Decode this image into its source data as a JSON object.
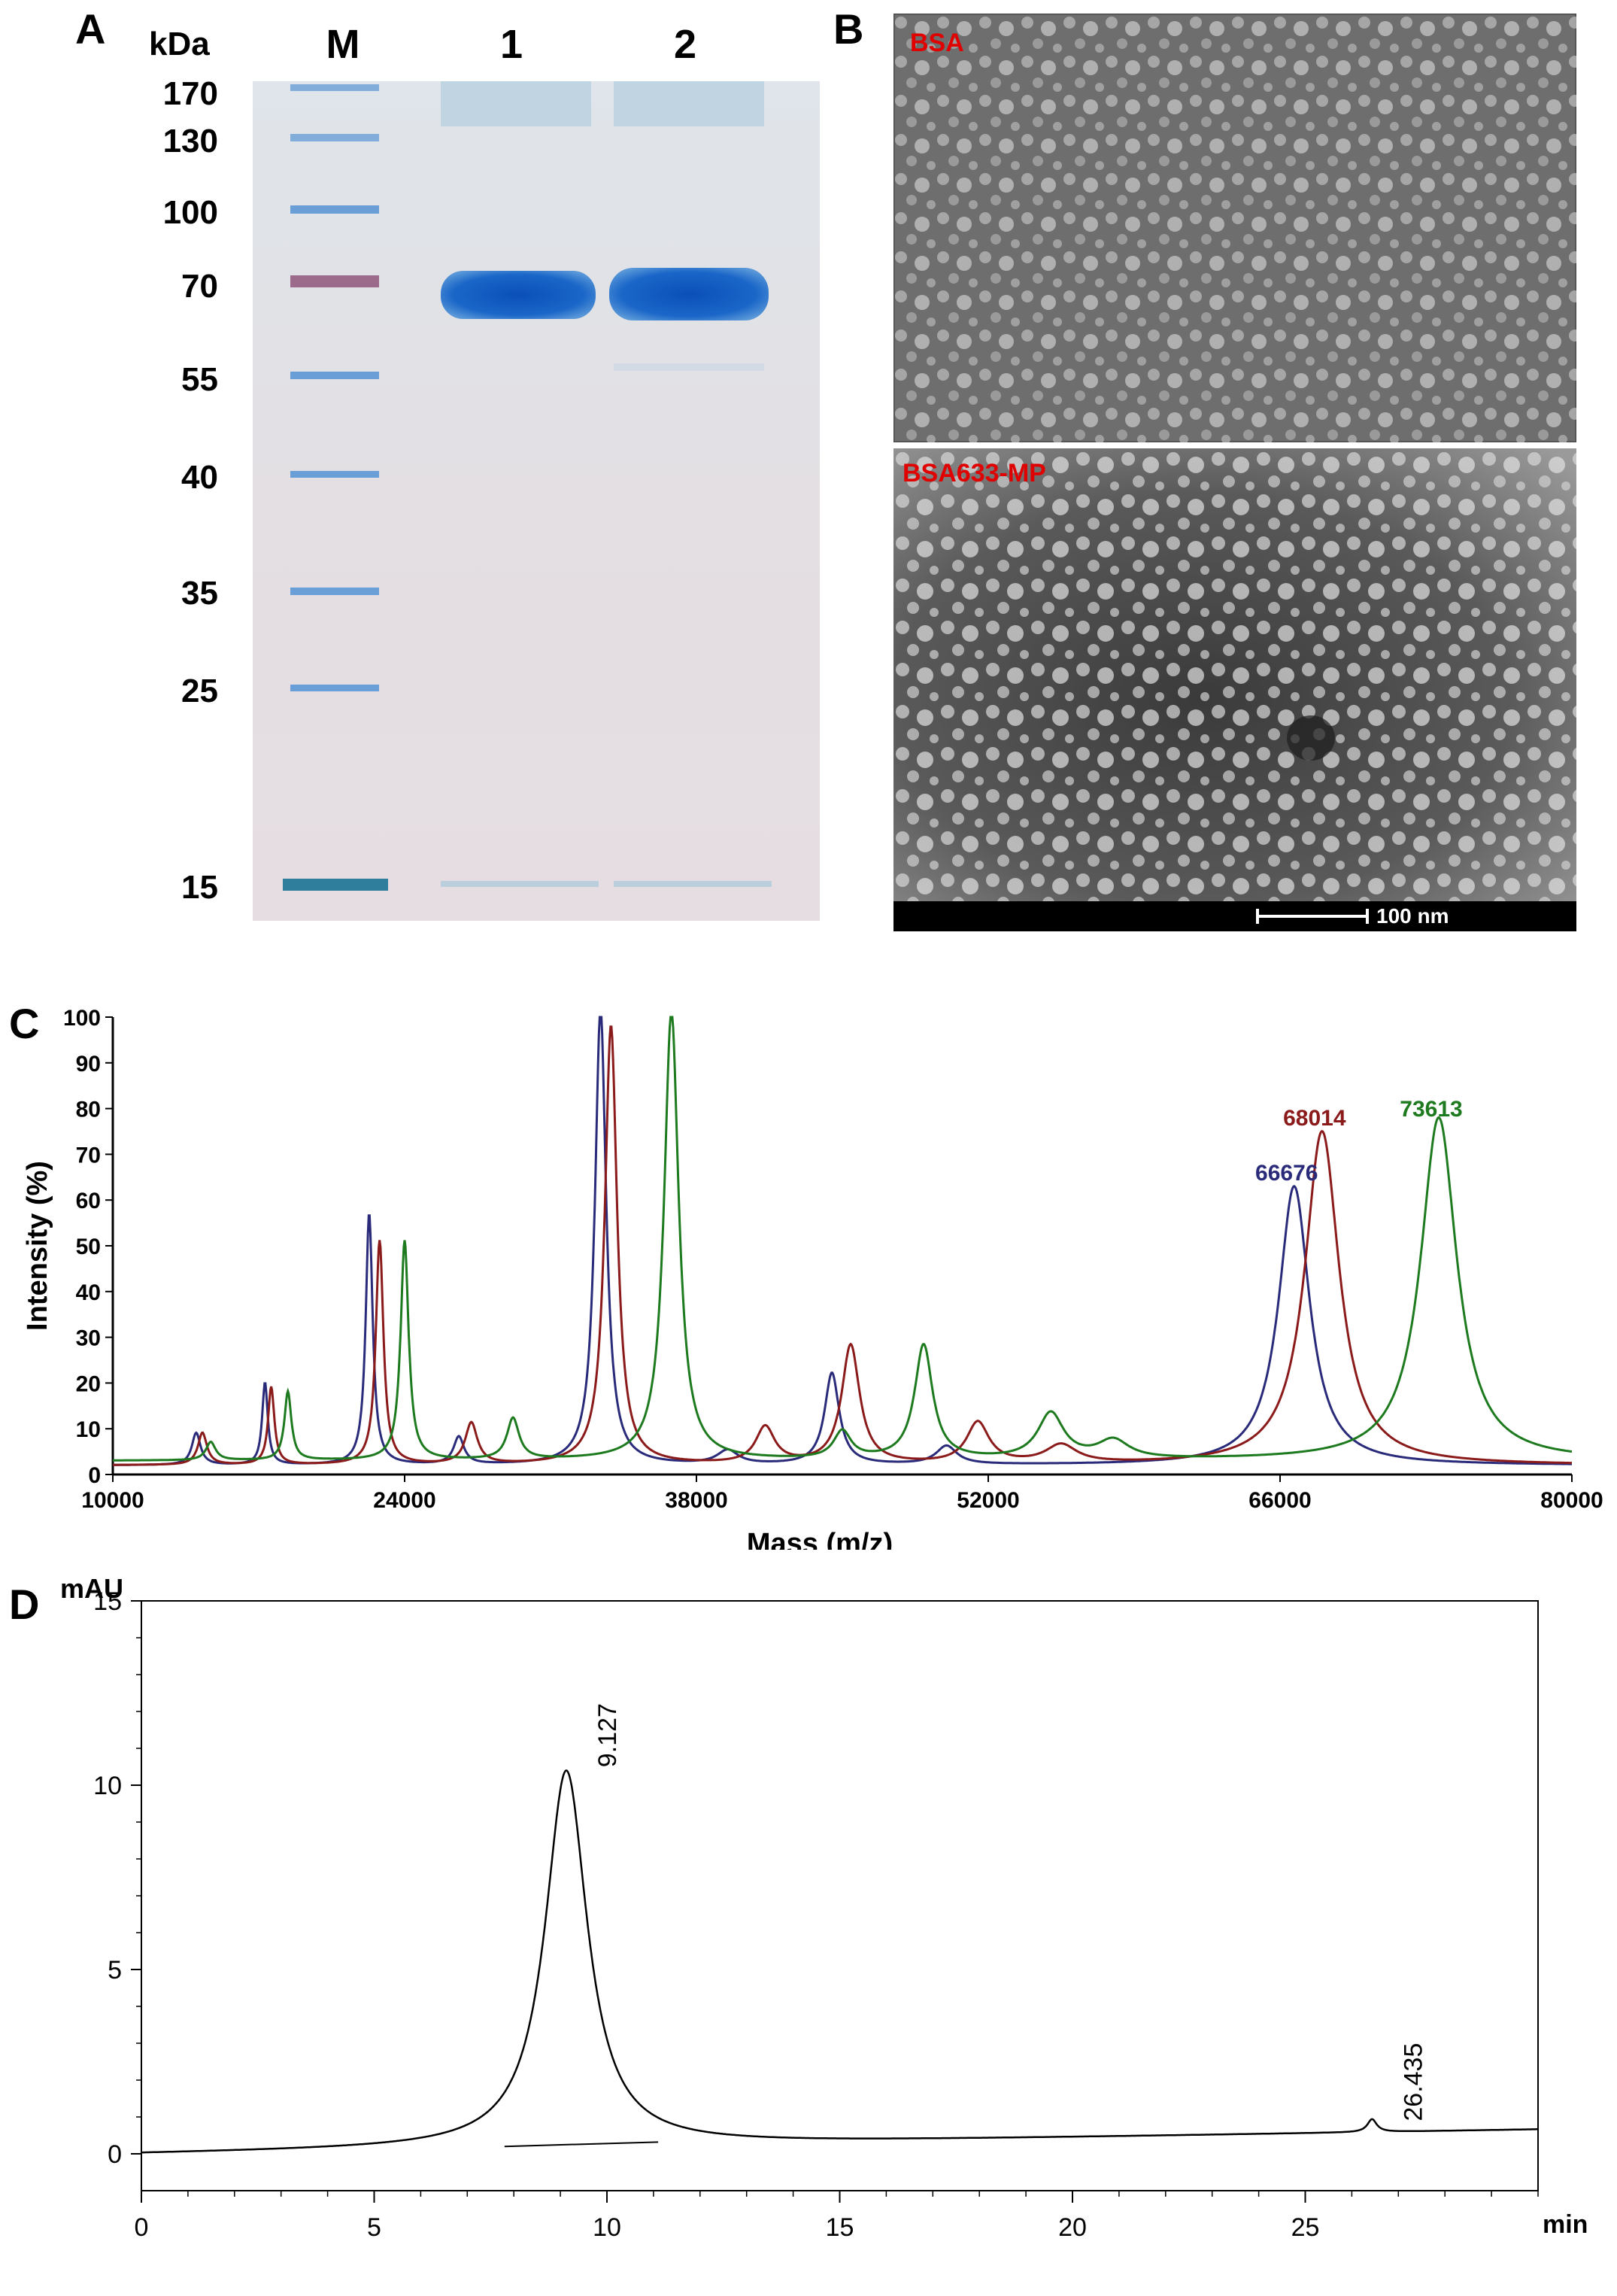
{
  "panels": {
    "a": "A",
    "b": "B",
    "c": "C",
    "d": "D"
  },
  "gel": {
    "unit": "kDa",
    "lanes": [
      "M",
      "1",
      "2"
    ],
    "markers": [
      "170",
      "130",
      "100",
      "70",
      "55",
      "40",
      "35",
      "25",
      "15"
    ]
  },
  "tem": {
    "top_label": "BSA",
    "bottom_label": "BSA633-MP",
    "scale_label": "100 nm"
  },
  "chart_data": [
    {
      "type": "line",
      "xlabel": "Mass (m/z)",
      "ylabel": "Intensity (%)",
      "xlim": [
        10000,
        80000
      ],
      "ylim": [
        0,
        100
      ],
      "x_ticks": [
        "10000",
        "24000",
        "38000",
        "52000",
        "66000",
        "80000"
      ],
      "y_ticks": [
        "0",
        "10",
        "20",
        "30",
        "40",
        "50",
        "60",
        "70",
        "80",
        "90",
        "100"
      ],
      "series": [
        {
          "color": "#2a2a7a",
          "baseline": 2,
          "peaks": [
            [
              14000,
              7,
              250
            ],
            [
              17300,
              18,
              160
            ],
            [
              22300,
              55,
              200
            ],
            [
              26600,
              6,
              300
            ],
            [
              33400,
              100,
              320
            ],
            [
              39500,
              3,
              600
            ],
            [
              44500,
              20,
              420
            ],
            [
              50000,
              4,
              600
            ],
            [
              66676,
              61,
              900
            ]
          ]
        },
        {
          "color": "#8b1a1a",
          "baseline": 2,
          "peaks": [
            [
              14300,
              7,
              260
            ],
            [
              17600,
              17,
              180
            ],
            [
              22800,
              49,
              220
            ],
            [
              27200,
              9,
              350
            ],
            [
              33900,
              96,
              350
            ],
            [
              41300,
              8,
              550
            ],
            [
              45400,
              26,
              520
            ],
            [
              51500,
              9,
              650
            ],
            [
              55500,
              4,
              900
            ],
            [
              68014,
              73,
              1000
            ]
          ]
        },
        {
          "color": "#1e7a1e",
          "baseline": 3,
          "peaks": [
            [
              14700,
              4,
              280
            ],
            [
              18400,
              15,
              200
            ],
            [
              24000,
              48,
              230
            ],
            [
              29200,
              9,
              350
            ],
            [
              36800,
              98,
              420
            ],
            [
              45000,
              6,
              500
            ],
            [
              48900,
              25,
              520
            ],
            [
              55000,
              10,
              750
            ],
            [
              58000,
              4,
              900
            ],
            [
              73613,
              75,
              1050
            ]
          ]
        }
      ],
      "annotations": [
        {
          "text": "66676",
          "x": 66676,
          "y": 61,
          "color": "#2a2a7a"
        },
        {
          "text": "68014",
          "x": 68014,
          "y": 73,
          "color": "#8b1a1a"
        },
        {
          "text": "73613",
          "x": 73613,
          "y": 75,
          "color": "#1e7a1e"
        }
      ]
    },
    {
      "type": "line",
      "xlabel": "min",
      "ylabel": "mAU",
      "xlim": [
        0,
        30
      ],
      "ylim": [
        -1,
        15
      ],
      "x_ticks": [
        "0",
        "5",
        "10",
        "15",
        "20",
        "25"
      ],
      "y_ticks": [
        "0",
        "5",
        "10",
        "15"
      ],
      "series": [
        {
          "color": "#000000",
          "peaks": [
            [
              9.127,
              10.2,
              0.55
            ],
            [
              26.435,
              0.35,
              0.12
            ]
          ]
        }
      ],
      "annotations": [
        {
          "text": "9.127",
          "x": 9.127,
          "y": 10.2
        },
        {
          "text": "26.435",
          "x": 26.435,
          "y": 0.6
        }
      ]
    }
  ]
}
